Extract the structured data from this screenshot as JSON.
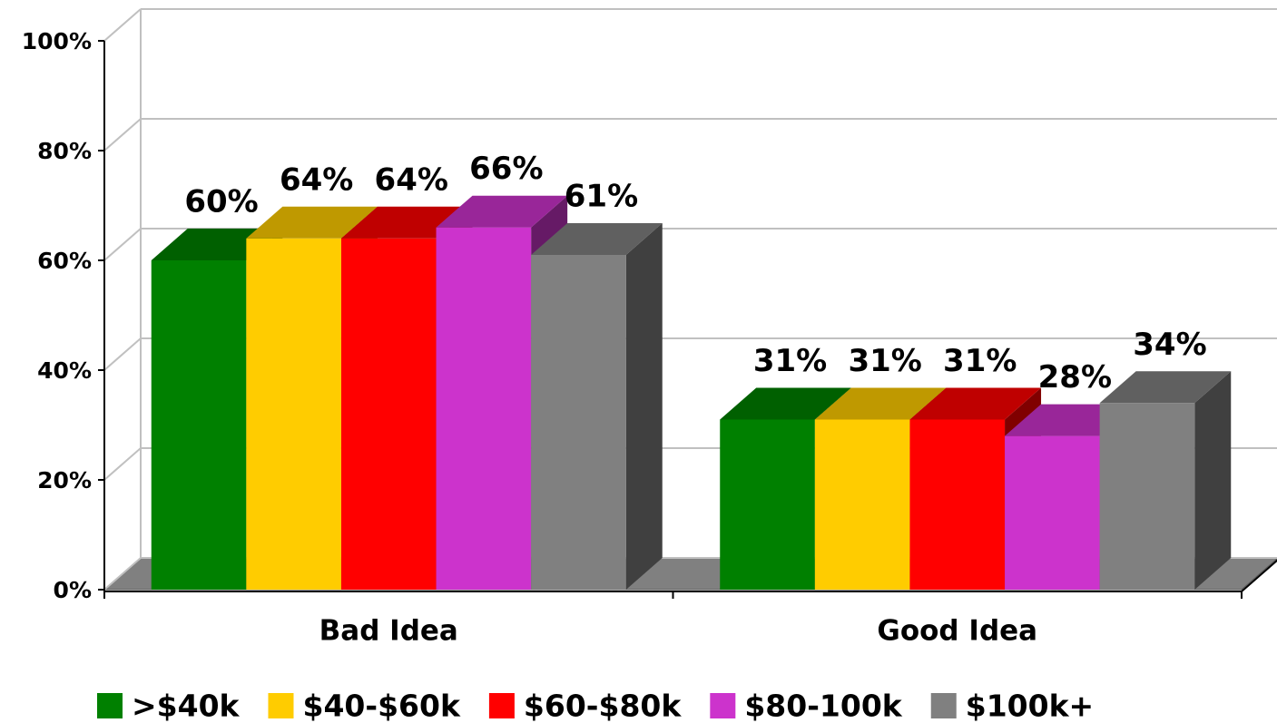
{
  "chart_data": {
    "type": "bar3d",
    "categories": [
      "Bad Idea",
      "Good Idea"
    ],
    "series": [
      {
        "name": ">$40k",
        "color": "#008000",
        "values": [
          60,
          31
        ],
        "value_labels": [
          "60%",
          "31%"
        ]
      },
      {
        "name": "$40-$60k",
        "color": "#ffcc00",
        "values": [
          64,
          31
        ],
        "value_labels": [
          "64%",
          "31%"
        ]
      },
      {
        "name": "$60-$80k",
        "color": "#ff0000",
        "values": [
          64,
          31
        ],
        "value_labels": [
          "64%",
          "31%"
        ]
      },
      {
        "name": "$80-100k",
        "color": "#cc33cc",
        "values": [
          66,
          28
        ],
        "value_labels": [
          "66%",
          "28%"
        ]
      },
      {
        "name": "$100k+",
        "color": "#808080",
        "values": [
          61,
          34
        ],
        "value_labels": [
          "61%",
          "34%"
        ]
      }
    ],
    "ylim": [
      0,
      100
    ],
    "yticks": [
      {
        "value": 0,
        "label": "0%"
      },
      {
        "value": 20,
        "label": "20%"
      },
      {
        "value": 40,
        "label": "40%"
      },
      {
        "value": 60,
        "label": "60%"
      },
      {
        "value": 80,
        "label": "80%"
      },
      {
        "value": 100,
        "label": "100%"
      }
    ],
    "grid": true,
    "legend": "bottom"
  }
}
